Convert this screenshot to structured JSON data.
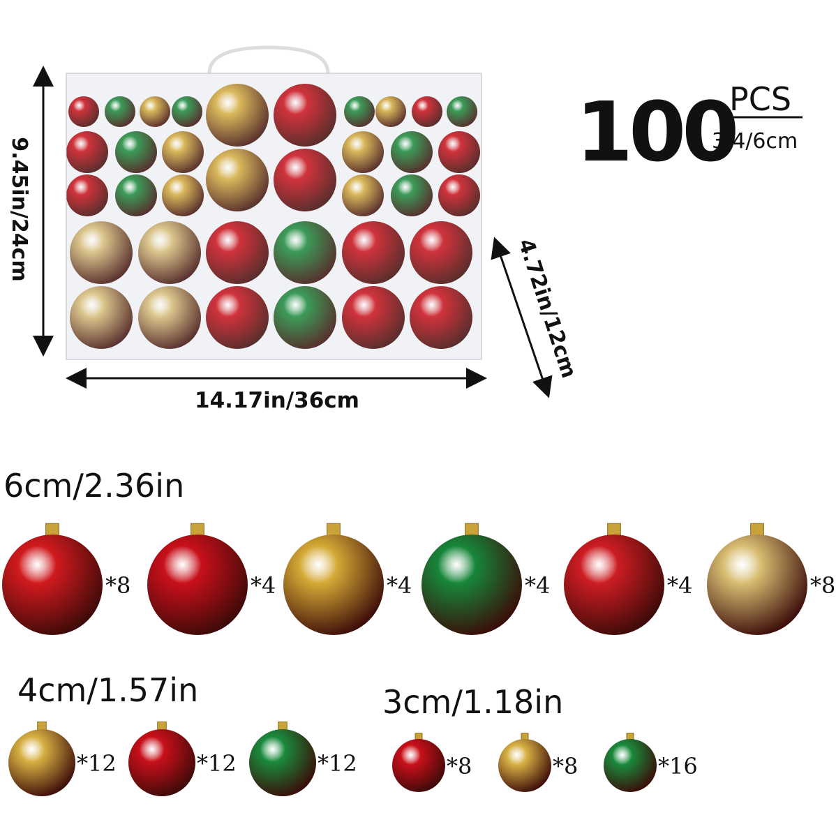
{
  "box": {
    "height_label": "9.45in/24cm",
    "width_label": "14.17in/36cm",
    "depth_label": "4.72in/12cm"
  },
  "badge": {
    "count": "100",
    "unit": "PCS",
    "sizes": "3/4/6cm"
  },
  "groups": [
    {
      "label": "6cm/2.36in",
      "items": [
        {
          "color": "#d01a1e",
          "quantity": "*8"
        },
        {
          "color": "#c8101a",
          "quantity": "*4"
        },
        {
          "color": "#d4a935",
          "quantity": "*4"
        },
        {
          "color": "#17863a",
          "quantity": "*4"
        },
        {
          "color": "#cc1d22",
          "quantity": "*4"
        },
        {
          "color": "#d8bd72",
          "quantity": "*8"
        }
      ]
    },
    {
      "label": "4cm/1.57in",
      "items": [
        {
          "color": "#d6b043",
          "quantity": "*12"
        },
        {
          "color": "#c8101a",
          "quantity": "*12"
        },
        {
          "color": "#1a8a3c",
          "quantity": "*12"
        }
      ]
    },
    {
      "label": "3cm/1.18in",
      "items": [
        {
          "color": "#c8101a",
          "quantity": "*8"
        },
        {
          "color": "#d6b043",
          "quantity": "*8"
        },
        {
          "color": "#1a8a3c",
          "quantity": "*16"
        }
      ]
    }
  ]
}
